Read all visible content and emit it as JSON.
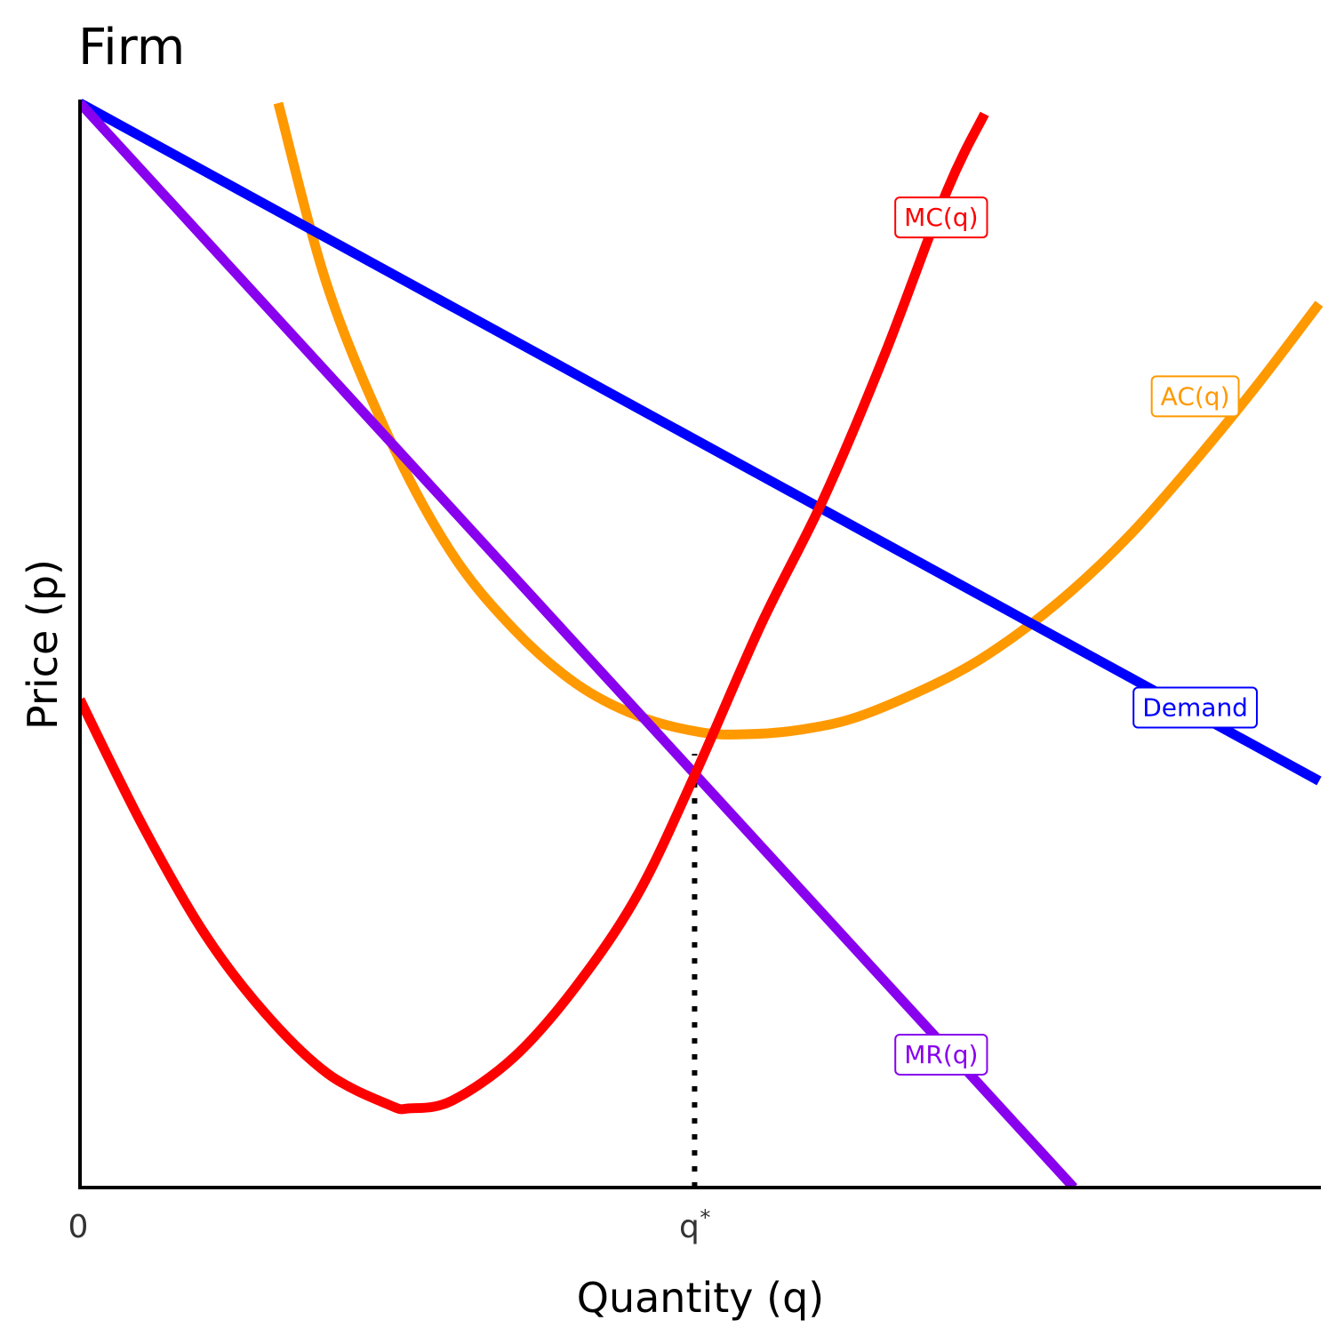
{
  "chart_data": {
    "type": "line",
    "title": "Firm",
    "xlabel": "Quantity (q)",
    "ylabel": "Price (p)",
    "xlim": [
      0,
      10
    ],
    "ylim": [
      0,
      10
    ],
    "grid": false,
    "x_ticks": [
      {
        "value": 0,
        "label": "0",
        "sup": ""
      },
      {
        "value": 4.96,
        "label": "q",
        "sup": "*"
      }
    ],
    "series": [
      {
        "name": "MC(q)",
        "color": "#ff0000",
        "x": [
          0,
          0.5,
          1,
          1.5,
          2,
          2.5,
          2.66,
          3,
          3.5,
          4,
          4.5,
          4.96,
          5.5,
          6,
          6.5,
          7,
          7.3
        ],
        "y": [
          4.5,
          3.35,
          2.35,
          1.6,
          1.05,
          0.76,
          0.73,
          0.8,
          1.2,
          1.85,
          2.7,
          3.8,
          5.2,
          6.35,
          7.7,
          9.2,
          9.9
        ],
        "label": {
          "text": "MC(q)",
          "x": 6.95,
          "y": 8.95
        }
      },
      {
        "name": "AC(q)",
        "color": "#ff9900",
        "x": [
          1.6,
          2,
          2.5,
          3,
          3.5,
          4,
          4.5,
          5,
          5.37,
          5.8,
          6.3,
          7,
          7.5,
          8,
          8.5,
          9,
          9.5,
          10
        ],
        "y": [
          10,
          8.3,
          6.9,
          5.85,
          5.15,
          4.65,
          4.35,
          4.2,
          4.18,
          4.22,
          4.35,
          4.7,
          5.05,
          5.5,
          6.05,
          6.7,
          7.4,
          8.15
        ],
        "label": {
          "text": "AC(q)",
          "x": 9.0,
          "y": 7.3
        }
      },
      {
        "name": "Demand",
        "color": "#0000ff",
        "x": [
          0,
          10
        ],
        "y": [
          10,
          3.75
        ],
        "label": {
          "text": "Demand",
          "x": 9.0,
          "y": 4.43
        }
      },
      {
        "name": "MR(q)",
        "color": "#8800ee",
        "x": [
          0,
          8.02
        ],
        "y": [
          10,
          0
        ],
        "label": {
          "text": "MR(q)",
          "x": 6.95,
          "y": 1.23
        }
      }
    ],
    "reference_lines": [
      {
        "x": 4.96,
        "y_from": 0,
        "y_to": 4.0,
        "style": "dotted",
        "color": "#000000"
      }
    ]
  }
}
